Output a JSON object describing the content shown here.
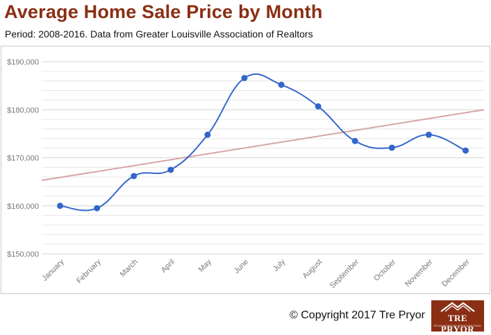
{
  "header": {
    "title": "Average Home Sale Price by Month",
    "subtitle": "Period: 2008-2016. Data from Greater Louisville Association of Realtors"
  },
  "footer": {
    "copyright": "© Copyright 2017 Tre Pryor",
    "logo_text": "TRE PRYOR",
    "logo_subtext": "TRUSTWORTHY PROFESSIONAL"
  },
  "colors": {
    "title": "#8a2e14",
    "series": "#3366cc",
    "trendline": "#d6a4a4",
    "grid": "#e6e6e6",
    "axis_label": "#777777"
  },
  "chart_data": {
    "type": "line",
    "title": "",
    "xlabel": "",
    "ylabel": "",
    "categories": [
      "January",
      "February",
      "March",
      "April",
      "May",
      "June",
      "July",
      "August",
      "September",
      "October",
      "November",
      "December"
    ],
    "series": [
      {
        "values": [
          160000,
          159500,
          166200,
          167500,
          174800,
          186600,
          185200,
          180700,
          173500,
          172100,
          174800,
          171500
        ]
      }
    ],
    "trendline": {
      "start": 165300,
      "end": 180000
    },
    "ylim": [
      150000,
      190000
    ],
    "yticks": [
      150000,
      160000,
      170000,
      180000,
      190000
    ],
    "ytick_labels": [
      "$150,000",
      "$160,000",
      "$170,000",
      "$180,000",
      "$190,000"
    ],
    "grid": true,
    "legend": "none"
  }
}
